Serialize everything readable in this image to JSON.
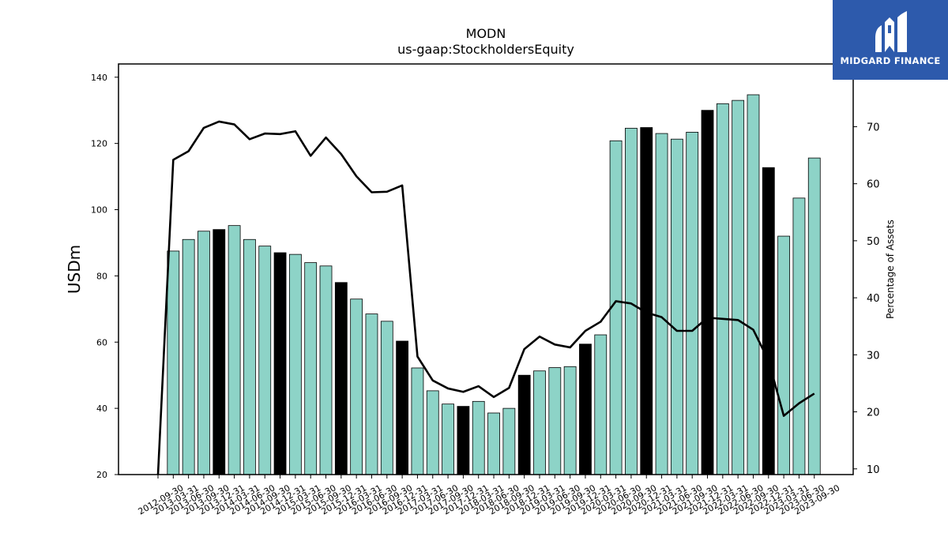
{
  "chart_data": {
    "type": "bar",
    "title": "MODN",
    "subtitle": "us-gaap:StockholdersEquity",
    "ylabel": "USDm",
    "y2label": "Percentage of Assets",
    "ylim": [
      20,
      144
    ],
    "y2lim": [
      9,
      81
    ],
    "yticks": [
      20,
      40,
      60,
      80,
      100,
      120,
      140
    ],
    "y2ticks": [
      10,
      20,
      30,
      40,
      50,
      60,
      70
    ],
    "categories": [
      "2012-09-30",
      "2013-03-31",
      "2013-06-30",
      "2013-09-30",
      "2013-12-31",
      "2014-03-31",
      "2014-06-30",
      "2014-09-30",
      "2014-12-31",
      "2015-03-31",
      "2015-06-30",
      "2015-09-30",
      "2015-12-31",
      "2016-03-31",
      "2016-06-30",
      "2016-09-30",
      "2016-12-31",
      "2017-03-31",
      "2017-06-30",
      "2017-09-30",
      "2017-12-31",
      "2018-03-31",
      "2018-06-30",
      "2018-09-30",
      "2018-12-31",
      "2019-03-31",
      "2019-06-30",
      "2019-09-30",
      "2019-12-31",
      "2020-03-31",
      "2020-06-30",
      "2020-09-30",
      "2020-12-31",
      "2021-03-31",
      "2021-06-30",
      "2021-09-30",
      "2021-12-31",
      "2022-03-31",
      "2022-06-30",
      "2022-09-30",
      "2022-12-31",
      "2023-03-31",
      "2023-06-30",
      "2023-09-30"
    ],
    "series": [
      {
        "kind": "bar",
        "values": [
          null,
          87.5,
          91.0,
          93.5,
          94.0,
          95.2,
          91.0,
          89.0,
          87.0,
          86.5,
          84.0,
          83.0,
          78.0,
          73.0,
          68.5,
          66.3,
          60.3,
          52.2,
          45.3,
          41.3,
          40.6,
          42.1,
          38.6,
          40.0,
          50.0,
          51.3,
          52.3,
          52.6,
          59.4,
          62.2,
          120.8,
          124.6,
          124.8,
          123.0,
          121.3,
          123.4,
          130.0,
          132.0,
          133.0,
          134.7,
          112.7,
          92.0,
          103.5,
          115.6
        ],
        "highlight": [
          false,
          false,
          false,
          false,
          true,
          false,
          false,
          false,
          true,
          false,
          false,
          false,
          true,
          false,
          false,
          false,
          true,
          false,
          false,
          false,
          true,
          false,
          false,
          false,
          true,
          false,
          false,
          false,
          true,
          false,
          false,
          false,
          true,
          false,
          false,
          false,
          true,
          false,
          false,
          false,
          true,
          false,
          false,
          false
        ],
        "color": "#8dd3c7",
        "highlight_color": "#000000"
      },
      {
        "kind": "line",
        "axis": "right",
        "values": [
          9.0,
          64.2,
          65.7,
          69.8,
          70.9,
          70.4,
          67.8,
          68.8,
          68.7,
          69.2,
          64.9,
          68.1,
          65.2,
          61.3,
          58.5,
          58.6,
          59.7,
          29.7,
          25.5,
          24.1,
          23.5,
          24.5,
          22.6,
          24.2,
          31.0,
          33.2,
          31.8,
          31.3,
          34.2,
          35.8,
          39.4,
          39.0,
          37.4,
          36.6,
          34.2,
          34.2,
          36.5,
          36.3,
          36.1,
          34.4,
          29.0,
          19.3,
          21.5,
          23.2
        ],
        "color": "#000000"
      }
    ]
  },
  "logo": {
    "text": "MIDGARD FINANCE",
    "bg": "#2d5aac"
  }
}
